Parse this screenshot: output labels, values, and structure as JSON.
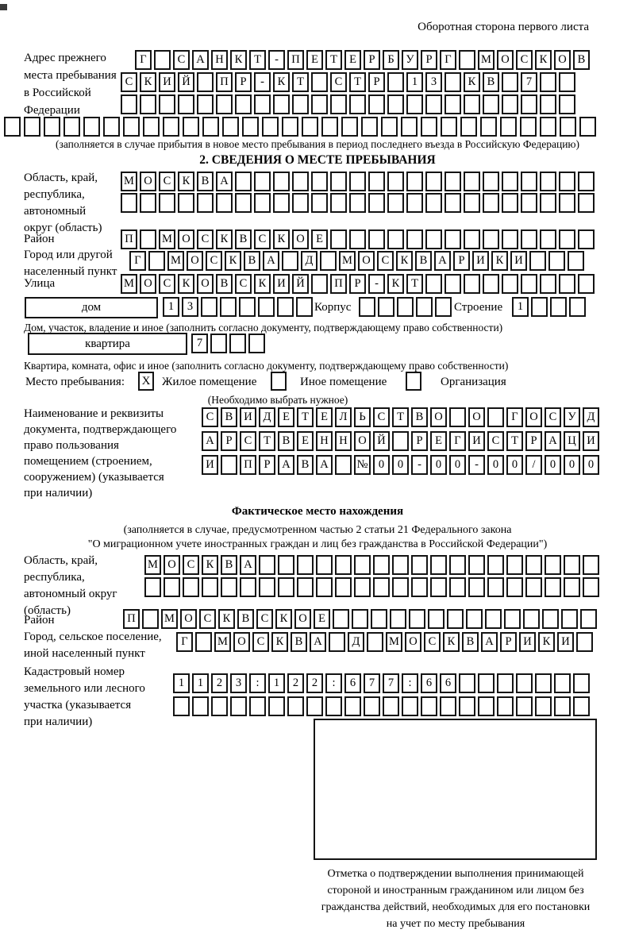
{
  "page": {
    "header_right": "Оборотная сторона первого листа"
  },
  "prev_address": {
    "label": "Адрес прежнего\nместа пребывания\nв Российской\nФедерации",
    "rows": [
      {
        "text": "Г САНКТ-ПЕТЕРБУРГ МОСКОВ",
        "count": 24
      },
      {
        "text": "СКИЙ ПР-КТ СТР 13 КВ 7",
        "count": 24
      },
      {
        "text": "",
        "count": 24
      },
      {
        "text": "",
        "count": 30
      }
    ],
    "note": "(заполняется в случае прибытия в новое место пребывания в период последнего въезда в Российскую Федерацию)"
  },
  "section2": {
    "title": "2. СВЕДЕНИЯ О МЕСТЕ ПРЕБЫВАНИЯ",
    "region": {
      "label": "Область, край,\nреспублика,\nавтономный\nокруг (область)",
      "rows": [
        {
          "text": "МОСКВА",
          "count": 25
        },
        {
          "text": "",
          "count": 25
        }
      ]
    },
    "district": {
      "label": "Район",
      "row": {
        "text": "П МОСКВСКОЕ",
        "count": 25
      }
    },
    "city": {
      "label": "Город или другой\nнаселенный пункт",
      "row": {
        "text": "Г МОСКВА Д МОСКВАРИКИ",
        "count": 24
      }
    },
    "street": {
      "label": "Улица",
      "row": {
        "text": "МОСКОВСКИЙ ПР-КТ",
        "count": 25
      }
    },
    "house": {
      "box_label": "дом",
      "row": {
        "text": "13",
        "count": 8
      },
      "korpus_label": "Корпус",
      "korpus_row": {
        "text": "",
        "count": 5
      },
      "stroenie_label": "Строение",
      "stroenie_row": {
        "text": "1",
        "count": 4
      },
      "note": "Дом, участок, владение и иное (заполнить согласно документу, подтверждающему право собственности)"
    },
    "apartment": {
      "box_label": "квартира",
      "row": {
        "text": "7",
        "count": 4
      },
      "note": "Квартира, комната, офис и иное (заполнить согласно документу, подтверждающему право собственности)"
    },
    "stay_type": {
      "label": "Место пребывания:",
      "options": [
        {
          "label": "Жилое помещение",
          "mark": "X"
        },
        {
          "label": "Иное помещение",
          "mark": ""
        },
        {
          "label": "Организация",
          "mark": ""
        }
      ],
      "note": "(Необходимо выбрать нужное)"
    },
    "document": {
      "label": "Наименование и реквизиты\nдокумента, подтверждающего\nправо пользования\nпомещением (строением,\nсооружением) (указывается\nпри наличии)",
      "rows": [
        {
          "text": "СВИДЕТЕЛЬСТВО О ГОСУД",
          "count": 21
        },
        {
          "text": "АРСТВЕННОЙ РЕГИСТРАЦИ",
          "count": 21
        },
        {
          "text": "И ПРАВА №00-00-00/000",
          "count": 21
        }
      ]
    }
  },
  "actual_location": {
    "title": "Фактическое место нахождения",
    "note1": "(заполняется в случае, предусмотренном частью 2 статьи 21 Федерального закона",
    "note2": "\"О миграционном учете иностранных граждан и лиц без гражданства в Российской Федерации\")",
    "region": {
      "label": "Область, край,\nреспублика,\nавтономный округ\n(область)",
      "rows": [
        {
          "text": "МОСКВА",
          "count": 24
        },
        {
          "text": "",
          "count": 24
        }
      ]
    },
    "district": {
      "label": "Район",
      "row": {
        "text": "П МОСКВСКОЕ",
        "count": 25
      }
    },
    "city": {
      "label": "Город, сельское поселение,\nиной населенный пункт",
      "row": {
        "text": "Г МОСКВА Д МОСКВАРИКИ",
        "count": 22
      }
    },
    "cadastral": {
      "label": "Кадастровый номер\nземельного или лесного\nучастка (указывается\nпри наличии)",
      "rows": [
        {
          "text": "1123:122:677:66",
          "count": 22
        },
        {
          "text": "",
          "count": 22
        }
      ]
    },
    "stamp_note": "Отметка о подтверждении выполнения принимающей\nстороной и иностранным гражданином или лицом без\nгражданства действий, необходимых для его постановки\nна учет по месту пребывания"
  }
}
